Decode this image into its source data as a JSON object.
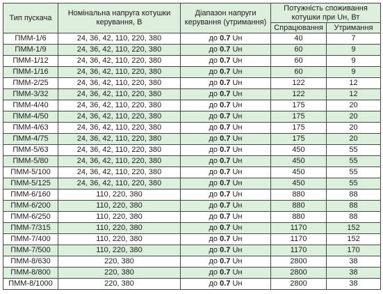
{
  "headers": {
    "type": "Тип пускача",
    "voltage": "Номінальна напруга котушки керування, В",
    "range": "Діапазон напруги керування (утримання)",
    "power": "Потужність споживання котушки при Uн, Вт",
    "pickup": "Спрацювання",
    "hold": "Утримання"
  },
  "rows": [
    {
      "type": "ПММ-1/6",
      "voltage": "24, 36, 42, 110, 220, 380",
      "range_prefix": "до",
      "range_value": "0.7",
      "range_unit": "Uн",
      "pickup": "40",
      "hold": "7"
    },
    {
      "type": "ПММ-1/9",
      "voltage": "24, 36, 42, 110, 220, 380",
      "range_prefix": "до",
      "range_value": "0.7",
      "range_unit": "Uн",
      "pickup": "60",
      "hold": "9"
    },
    {
      "type": "ПММ-1/12",
      "voltage": "24, 36, 42, 110, 220, 380",
      "range_prefix": "до",
      "range_value": "0.7",
      "range_unit": "Uн",
      "pickup": "60",
      "hold": "9"
    },
    {
      "type": "ПММ-1/16",
      "voltage": "24, 36, 42, 110, 220, 380",
      "range_prefix": "до",
      "range_value": "0.7",
      "range_unit": "Uн",
      "pickup": "60",
      "hold": "9"
    },
    {
      "type": "ПММ-2/25",
      "voltage": "24, 36, 42, 110, 220, 380",
      "range_prefix": "до",
      "range_value": "0.7",
      "range_unit": "Uн",
      "pickup": "122",
      "hold": "12"
    },
    {
      "type": "ПММ-3/32",
      "voltage": "24, 36, 42, 110, 220, 380",
      "range_prefix": "до",
      "range_value": "0.7",
      "range_unit": "Uн",
      "pickup": "122",
      "hold": "12"
    },
    {
      "type": "ПММ-4/40",
      "voltage": "24, 36, 42, 110, 220, 380",
      "range_prefix": "до",
      "range_value": "0.7",
      "range_unit": "Uн",
      "pickup": "175",
      "hold": "20"
    },
    {
      "type": "ПММ-4/50",
      "voltage": "24, 36, 42, 110, 220, 380",
      "range_prefix": "до",
      "range_value": "0.7",
      "range_unit": "Uн",
      "pickup": "175",
      "hold": "20"
    },
    {
      "type": "ПММ-4/63",
      "voltage": "24, 36, 42, 110, 220, 380",
      "range_prefix": "до",
      "range_value": "0.7",
      "range_unit": "Uн",
      "pickup": "175",
      "hold": "20"
    },
    {
      "type": "ПММ-4/75",
      "voltage": "24, 36, 42, 110, 220, 380",
      "range_prefix": "до",
      "range_value": "0.7",
      "range_unit": "Uн",
      "pickup": "175",
      "hold": "20"
    },
    {
      "type": "ПММ-5/63",
      "voltage": "24, 36, 42, 110, 220, 380",
      "range_prefix": "до",
      "range_value": "0.7",
      "range_unit": "Uн",
      "pickup": "450",
      "hold": "55"
    },
    {
      "type": "ПММ-5/80",
      "voltage": "24, 36, 42, 110, 220, 380",
      "range_prefix": "до",
      "range_value": "0.7",
      "range_unit": "Uн",
      "pickup": "450",
      "hold": "55"
    },
    {
      "type": "ПММ-5/100",
      "voltage": "24, 36, 42, 110, 220, 380",
      "range_prefix": "до",
      "range_value": "0.7",
      "range_unit": "Uн",
      "pickup": "450",
      "hold": "55"
    },
    {
      "type": "ПММ-5/125",
      "voltage": "24, 36, 42, 110, 220, 380",
      "range_prefix": "до",
      "range_value": "0.7",
      "range_unit": "Uн",
      "pickup": "450",
      "hold": "55"
    },
    {
      "type": "ПММ-6/160",
      "voltage": "110, 220, 380",
      "range_prefix": "до",
      "range_value": "0.7",
      "range_unit": "Uн",
      "pickup": "880",
      "hold": "88"
    },
    {
      "type": "ПММ-6/200",
      "voltage": "110, 220, 380",
      "range_prefix": "до",
      "range_value": "0.7",
      "range_unit": "Uн",
      "pickup": "880",
      "hold": "88"
    },
    {
      "type": "ПММ-6/250",
      "voltage": "110, 220, 380",
      "range_prefix": "до",
      "range_value": "0.7",
      "range_unit": "Uн",
      "pickup": "880",
      "hold": "88"
    },
    {
      "type": "ПММ-7/315",
      "voltage": "110, 220, 380",
      "range_prefix": "до",
      "range_value": "0.7",
      "range_unit": "Uн",
      "pickup": "1170",
      "hold": "152"
    },
    {
      "type": "ПММ-7/400",
      "voltage": "110, 220, 380",
      "range_prefix": "до",
      "range_value": "0.7",
      "range_unit": "Uн",
      "pickup": "1170",
      "hold": "152"
    },
    {
      "type": "ПММ-7/500",
      "voltage": "110, 220, 380",
      "range_prefix": "до",
      "range_value": "0.7",
      "range_unit": "Uн",
      "pickup": "1170",
      "hold": "170"
    },
    {
      "type": "ПММ-8/630",
      "voltage": "220, 380",
      "range_prefix": "до",
      "range_value": "0.7",
      "range_unit": "Uн",
      "pickup": "2800",
      "hold": "38"
    },
    {
      "type": "ПММ-8/800",
      "voltage": "220, 380",
      "range_prefix": "до",
      "range_value": "0.7",
      "range_unit": "Uн",
      "pickup": "2800",
      "hold": "38"
    },
    {
      "type": "ПММ-8/1000",
      "voltage": "220, 380",
      "range_prefix": "до",
      "range_value": "0.7",
      "range_unit": "Uн",
      "pickup": "2800",
      "hold": "38"
    }
  ]
}
